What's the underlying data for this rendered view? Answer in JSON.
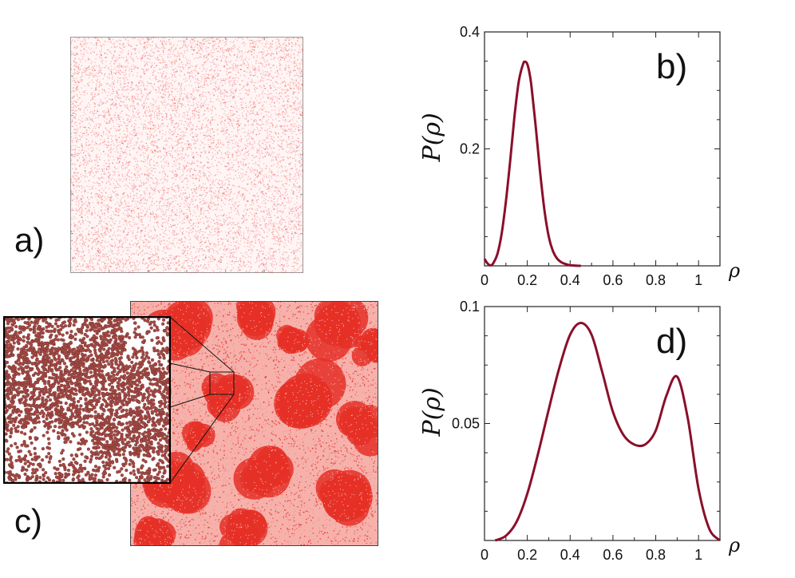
{
  "figure": {
    "panels": {
      "a": {
        "label": "a)"
      },
      "b": {
        "label": "b)"
      },
      "c": {
        "label": "c)"
      },
      "d": {
        "label": "d)"
      }
    },
    "colors": {
      "particles": "#e53027",
      "inset_particles": "#a24a45",
      "curve": "#8b0f2a",
      "axis": "#222222"
    }
  },
  "chart_data": [
    {
      "id": "b",
      "type": "line",
      "title": "b)",
      "xlabel": "ρ",
      "ylabel": "P(ρ)",
      "ylabel_text": "P(",
      "ylabel_sym": "ρ",
      "ylabel_close": ")",
      "xlim": [
        0,
        1.1
      ],
      "ylim": [
        0,
        0.4
      ],
      "xticks": [
        0,
        0.2,
        0.4,
        0.6,
        0.8,
        1
      ],
      "xtick_labels": [
        "0",
        "0.2",
        "0.4",
        "0.6",
        "0.8",
        "1"
      ],
      "yticks": [
        0.2,
        0.4
      ],
      "ytick_labels": [
        "0.2",
        "0.4"
      ],
      "series": [
        {
          "name": "P(ρ)",
          "x": [
            0,
            0.01,
            0.02,
            0.03,
            0.04,
            0.06,
            0.08,
            0.1,
            0.12,
            0.14,
            0.16,
            0.18,
            0.19,
            0.2,
            0.21,
            0.22,
            0.24,
            0.26,
            0.28,
            0.3,
            0.32,
            0.34,
            0.36,
            0.38,
            0.4,
            0.42,
            0.45
          ],
          "y": [
            0.012,
            0.006,
            0.002,
            0.001,
            0.004,
            0.02,
            0.055,
            0.11,
            0.18,
            0.255,
            0.315,
            0.345,
            0.349,
            0.345,
            0.33,
            0.305,
            0.235,
            0.16,
            0.095,
            0.05,
            0.025,
            0.012,
            0.006,
            0.003,
            0.001,
            0.0005,
            0
          ]
        }
      ]
    },
    {
      "id": "d",
      "type": "line",
      "title": "d)",
      "xlabel": "ρ",
      "ylabel": "P(ρ)",
      "ylabel_text": "P(",
      "ylabel_sym": "ρ",
      "ylabel_close": ")",
      "xlim": [
        0,
        1.1
      ],
      "ylim": [
        0,
        0.1
      ],
      "xticks": [
        0,
        0.2,
        0.4,
        0.6,
        0.8,
        1
      ],
      "xtick_labels": [
        "0",
        "0.2",
        "0.4",
        "0.6",
        "0.8",
        "1"
      ],
      "yticks": [
        0.05,
        0.1
      ],
      "ytick_labels": [
        "0.05",
        "0.1"
      ],
      "series": [
        {
          "name": "P(ρ)",
          "x": [
            0.05,
            0.1,
            0.15,
            0.2,
            0.25,
            0.3,
            0.35,
            0.4,
            0.45,
            0.5,
            0.55,
            0.6,
            0.65,
            0.7,
            0.75,
            0.8,
            0.85,
            0.9,
            0.95,
            1.0,
            1.05,
            1.1
          ],
          "y": [
            0,
            0.002,
            0.008,
            0.02,
            0.037,
            0.056,
            0.074,
            0.088,
            0.093,
            0.088,
            0.072,
            0.055,
            0.045,
            0.041,
            0.041,
            0.047,
            0.062,
            0.07,
            0.052,
            0.022,
            0.005,
            0
          ]
        }
      ]
    }
  ]
}
